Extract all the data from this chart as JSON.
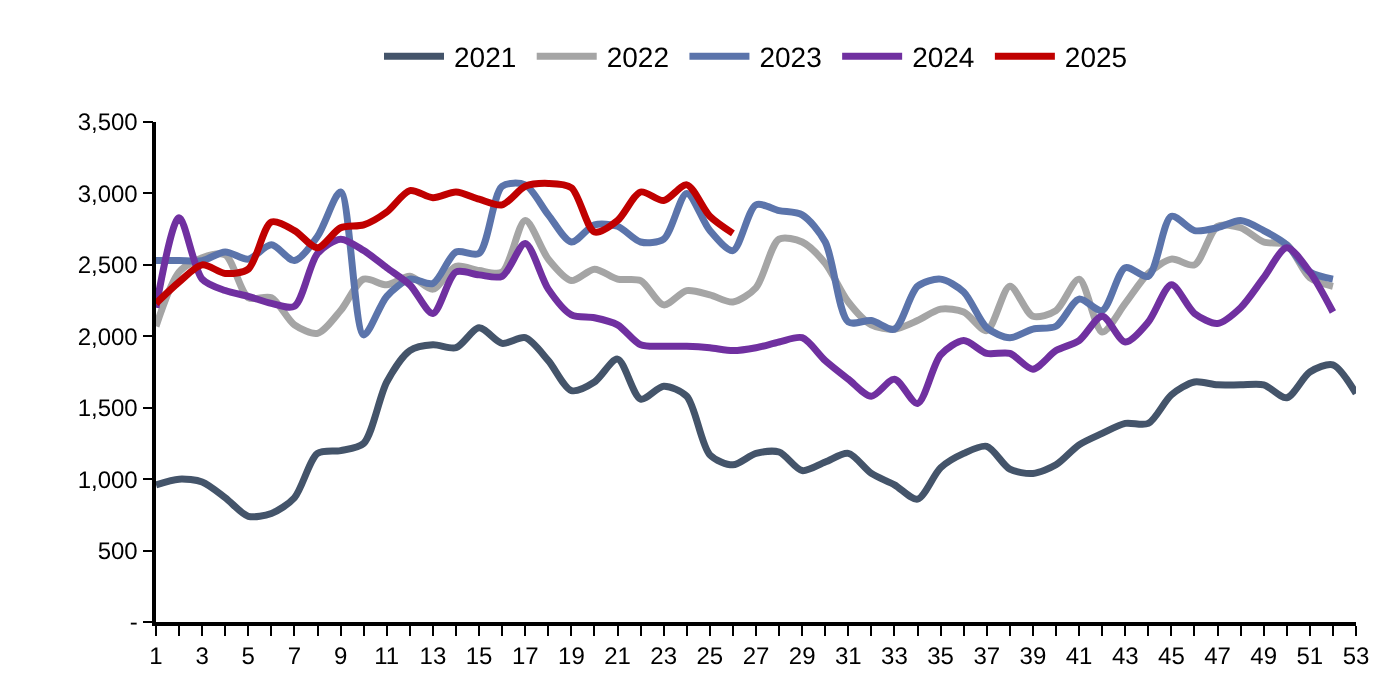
{
  "chart_data": {
    "type": "line",
    "legend": "top",
    "marker": "none",
    "line_style": "solid",
    "x": [
      1,
      2,
      3,
      4,
      5,
      6,
      7,
      8,
      9,
      10,
      11,
      12,
      13,
      14,
      15,
      16,
      17,
      18,
      19,
      20,
      21,
      22,
      23,
      24,
      25,
      26,
      27,
      28,
      29,
      30,
      31,
      32,
      33,
      34,
      35,
      36,
      37,
      38,
      39,
      40,
      41,
      42,
      43,
      44,
      45,
      46,
      47,
      48,
      49,
      50,
      51,
      52,
      53
    ],
    "xlim": [
      1,
      53
    ],
    "xticks": [
      1,
      {
        "value": 2,
        "label": null
      },
      3,
      {
        "value": 4,
        "label": null
      },
      5,
      {
        "value": 6,
        "label": null
      },
      7,
      {
        "value": 8,
        "label": null
      },
      9,
      {
        "value": 10,
        "label": null
      },
      11,
      {
        "value": 12,
        "label": null
      },
      13,
      {
        "value": 14,
        "label": null
      },
      15,
      {
        "value": 16,
        "label": null
      },
      17,
      {
        "value": 18,
        "label": null
      },
      19,
      {
        "value": 20,
        "label": null
      },
      21,
      {
        "value": 22,
        "label": null
      },
      23,
      {
        "value": 24,
        "label": null
      },
      25,
      {
        "value": 26,
        "label": null
      },
      27,
      {
        "value": 28,
        "label": null
      },
      29,
      {
        "value": 30,
        "label": null
      },
      31,
      {
        "value": 32,
        "label": null
      },
      33,
      {
        "value": 34,
        "label": null
      },
      35,
      {
        "value": 36,
        "label": null
      },
      37,
      {
        "value": 38,
        "label": null
      },
      39,
      {
        "value": 40,
        "label": null
      },
      41,
      {
        "value": 42,
        "label": null
      },
      43,
      {
        "value": 44,
        "label": null
      },
      45,
      {
        "value": 46,
        "label": null
      },
      47,
      {
        "value": 48,
        "label": null
      },
      49,
      {
        "value": 50,
        "label": null
      },
      51,
      {
        "value": 52,
        "label": null
      },
      53
    ],
    "ylim": [
      0,
      3500
    ],
    "yticks": [
      {
        "value": 0,
        "label": "-"
      },
      {
        "value": 500,
        "label": "500"
      },
      {
        "value": 1000,
        "label": "1,000"
      },
      {
        "value": 1500,
        "label": "1,500"
      },
      {
        "value": 2000,
        "label": "2,000"
      },
      {
        "value": 2500,
        "label": "2,500"
      },
      {
        "value": 3000,
        "label": "3,000"
      },
      {
        "value": 3500,
        "label": "3,500"
      }
    ],
    "series": [
      {
        "name": "2021",
        "color": "#44546a",
        "values": [
          960,
          1000,
          980,
          870,
          740,
          760,
          870,
          1180,
          1200,
          1250,
          1680,
          1900,
          1940,
          1920,
          2060,
          1950,
          1990,
          1830,
          1620,
          1680,
          1840,
          1560,
          1650,
          1580,
          1170,
          1100,
          1180,
          1190,
          1060,
          1120,
          1180,
          1040,
          960,
          860,
          1080,
          1180,
          1230,
          1070,
          1040,
          1100,
          1240,
          1320,
          1390,
          1390,
          1590,
          1680,
          1660,
          1660,
          1660,
          1570,
          1750,
          1800,
          1600
        ]
      },
      {
        "name": "2022",
        "color": "#a5a5a5",
        "values": [
          2070,
          2450,
          2550,
          2570,
          2270,
          2270,
          2080,
          2020,
          2180,
          2400,
          2360,
          2420,
          2330,
          2490,
          2460,
          2450,
          2810,
          2540,
          2390,
          2470,
          2400,
          2390,
          2220,
          2320,
          2290,
          2240,
          2340,
          2680,
          2660,
          2510,
          2240,
          2080,
          2050,
          2110,
          2190,
          2170,
          2040,
          2350,
          2140,
          2180,
          2400,
          2030,
          2230,
          2440,
          2540,
          2500,
          2770,
          2760,
          2660,
          2640,
          2410,
          2350,
          null
        ]
      },
      {
        "name": "2023",
        "color": "#5b74ab",
        "values": [
          2530,
          2530,
          2530,
          2590,
          2540,
          2640,
          2530,
          2700,
          3010,
          2010,
          2280,
          2400,
          2370,
          2590,
          2580,
          3050,
          3060,
          2850,
          2660,
          2780,
          2770,
          2660,
          2680,
          3000,
          2740,
          2600,
          2920,
          2880,
          2850,
          2660,
          2100,
          2110,
          2050,
          2350,
          2400,
          2310,
          2060,
          1990,
          2050,
          2070,
          2260,
          2180,
          2480,
          2420,
          2840,
          2740,
          2760,
          2810,
          2740,
          2640,
          2450,
          2400,
          null
        ]
      },
      {
        "name": "2024",
        "color": "#7030a0",
        "values": [
          2200,
          2830,
          2400,
          2320,
          2280,
          2230,
          2210,
          2580,
          2680,
          2600,
          2480,
          2360,
          2160,
          2450,
          2430,
          2420,
          2650,
          2330,
          2150,
          2130,
          2080,
          1940,
          1930,
          1930,
          1920,
          1900,
          1920,
          1960,
          1990,
          1830,
          1700,
          1580,
          1700,
          1530,
          1870,
          1970,
          1880,
          1880,
          1770,
          1900,
          1970,
          2140,
          1960,
          2100,
          2360,
          2160,
          2090,
          2200,
          2410,
          2620,
          2450,
          2170,
          null
        ]
      },
      {
        "name": "2025",
        "color": "#c00000",
        "values": [
          2230,
          2380,
          2500,
          2440,
          2470,
          2800,
          2740,
          2620,
          2760,
          2780,
          2870,
          3020,
          2970,
          3010,
          2960,
          2920,
          3050,
          3070,
          3040,
          2730,
          2810,
          3010,
          2950,
          3060,
          2840,
          2720,
          null,
          null,
          null,
          null,
          null,
          null,
          null,
          null,
          null,
          null,
          null,
          null,
          null,
          null,
          null,
          null,
          null,
          null,
          null,
          null,
          null,
          null,
          null,
          null,
          null,
          null,
          null
        ]
      }
    ]
  }
}
